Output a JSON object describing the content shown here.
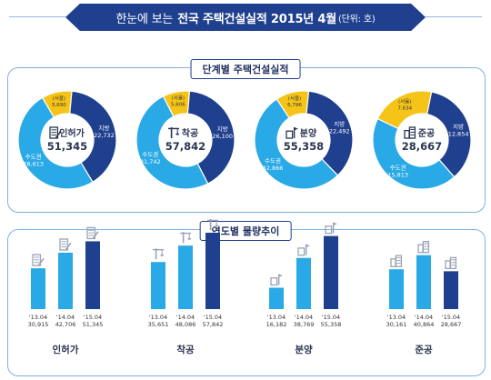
{
  "header": {
    "title_pre": "한눈에 보는",
    "title_main": "전국 주택건설실적 2015년 4월",
    "unit": "(단위: 호)"
  },
  "sections": {
    "donuts_title": "단계별 주택건설실적",
    "bars_title": "연도별 물량추이"
  },
  "colors": {
    "navy": "#1f3f8f",
    "sky": "#29a9e6",
    "seoul": "#f6c418",
    "banner": "#1f3f8f"
  },
  "chart_data": [
    {
      "type": "pie",
      "donuts": [
        {
          "name": "인허가",
          "total": "51,345",
          "icon": "document-icon",
          "slices": [
            {
              "label": "(서울)",
              "value": 5690,
              "value_text": "5,690"
            },
            {
              "label": "지방",
              "value": 22732,
              "value_text": "22,732"
            },
            {
              "label": "수도권",
              "value": 28613,
              "value_text": "28,613"
            }
          ]
        },
        {
          "name": "착공",
          "total": "57,842",
          "icon": "crane-icon",
          "slices": [
            {
              "label": "(서울)",
              "value": 5606,
              "value_text": "5,606"
            },
            {
              "label": "지방",
              "value": 26100,
              "value_text": "26,100"
            },
            {
              "label": "수도권",
              "value": 31742,
              "value_text": "31,742"
            }
          ]
        },
        {
          "name": "분양",
          "total": "55,358",
          "icon": "flag-icon",
          "slices": [
            {
              "label": "(서울)",
              "value": 6796,
              "value_text": "6,796"
            },
            {
              "label": "지방",
              "value": 22492,
              "value_text": "22,492"
            },
            {
              "label": "수도권",
              "value": 32866,
              "value_text": "32,866"
            }
          ]
        },
        {
          "name": "준공",
          "total": "28,667",
          "icon": "building-icon",
          "slices": [
            {
              "label": "(서울)",
              "value": 7634,
              "value_text": "7,634"
            },
            {
              "label": "지방",
              "value": 12854,
              "value_text": "12,854"
            },
            {
              "label": "수도권",
              "value": 15813,
              "value_text": "15,813"
            }
          ]
        }
      ]
    },
    {
      "type": "bar",
      "groups": [
        {
          "name": "인허가",
          "icon": "document-icon",
          "categories": [
            "'13.04",
            "'14.04",
            "'15.04"
          ],
          "values": [
            30915,
            42706,
            51345
          ],
          "value_texts": [
            "30,915",
            "42,706",
            "51,345"
          ]
        },
        {
          "name": "착공",
          "icon": "crane-icon",
          "categories": [
            "'13.04",
            "'14.04",
            "'15.04"
          ],
          "values": [
            35651,
            48086,
            57842
          ],
          "value_texts": [
            "35,651",
            "48,086",
            "57,842"
          ]
        },
        {
          "name": "분양",
          "icon": "flag-icon",
          "categories": [
            "'13.04",
            "'14.04",
            "'15.04"
          ],
          "values": [
            16182,
            38769,
            55358
          ],
          "value_texts": [
            "16,182",
            "38,769",
            "55,358"
          ]
        },
        {
          "name": "준공",
          "icon": "building-icon",
          "categories": [
            "'13.04",
            "'14.04",
            "'15.04"
          ],
          "values": [
            30161,
            40864,
            28667
          ],
          "value_texts": [
            "30,161",
            "40,864",
            "28,667"
          ]
        }
      ]
    }
  ]
}
